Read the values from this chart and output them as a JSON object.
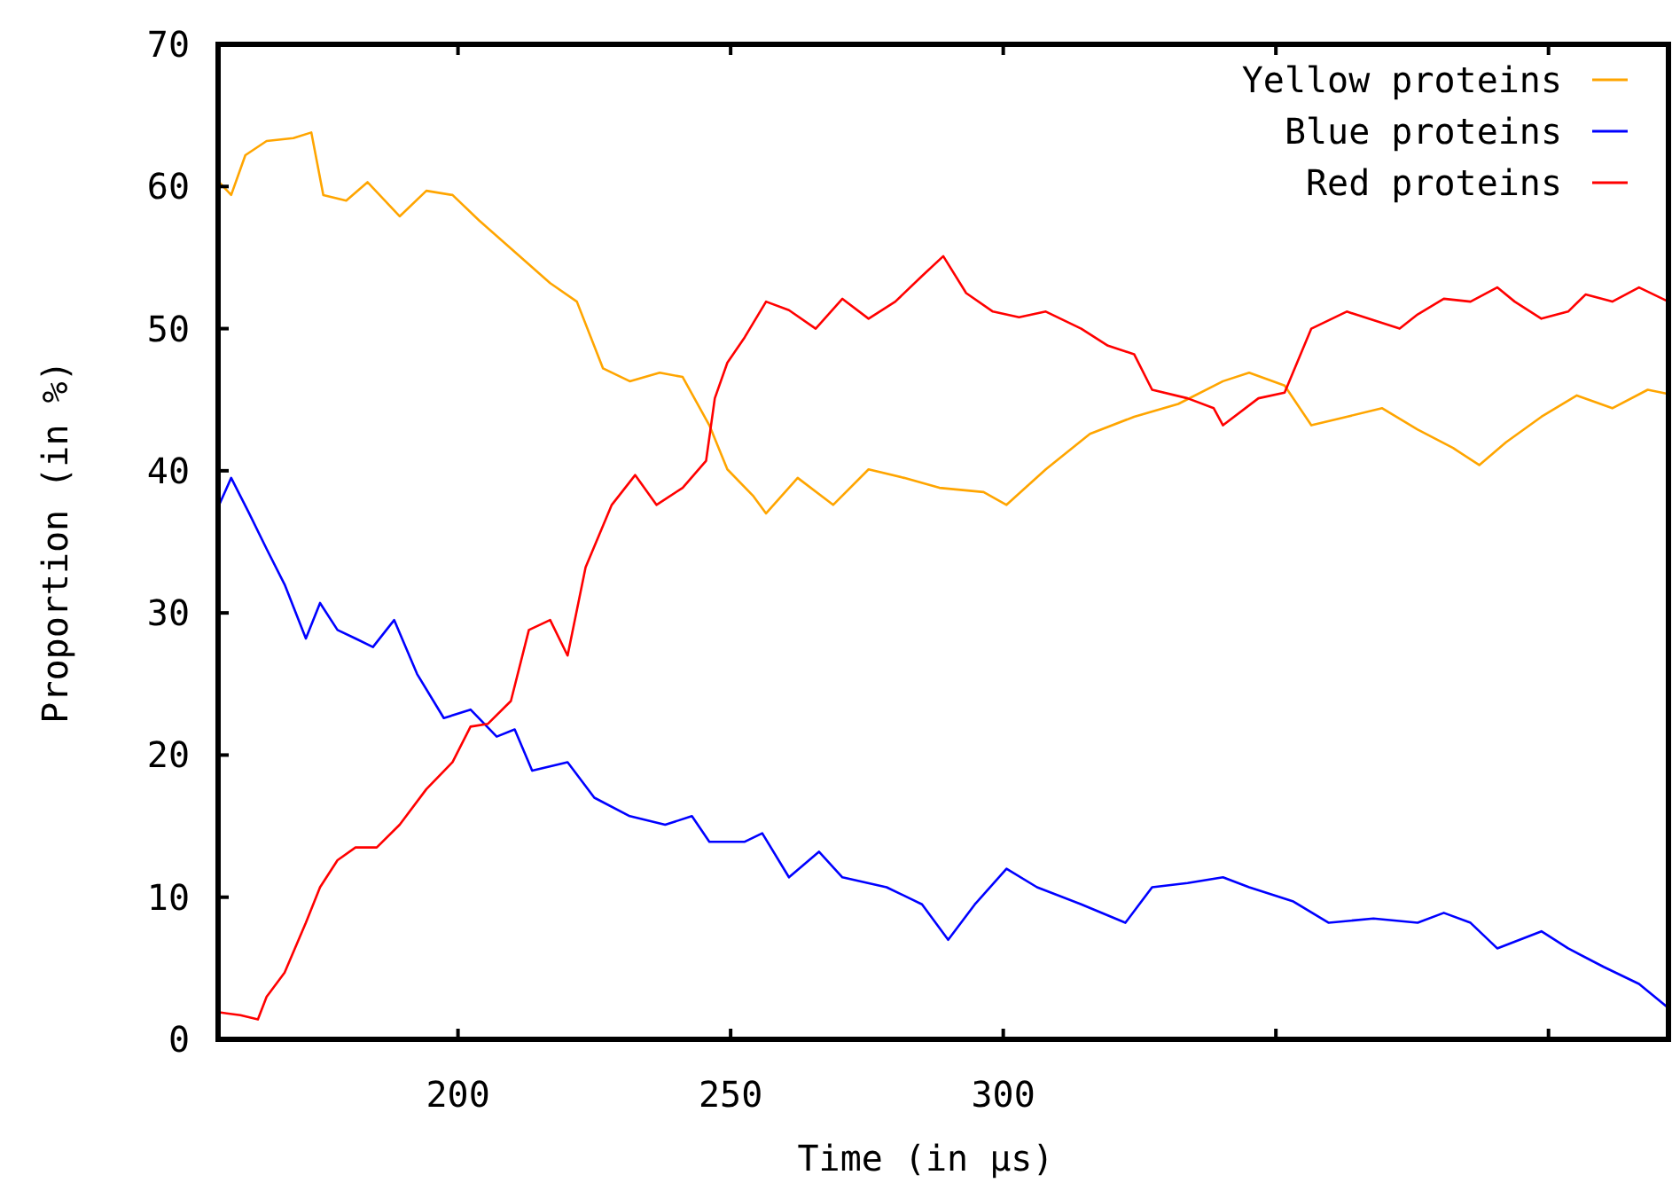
{
  "chart_data": {
    "type": "line",
    "xlabel": "Time (in µs)",
    "ylabel": "Proportion (in %)",
    "xlim": [
      156,
      422
    ],
    "xticks": [
      200,
      250,
      300,
      {
        "value": 350,
        "label": null
      },
      {
        "value": 400,
        "label": null
      }
    ],
    "ylim": [
      0,
      70
    ],
    "yticks": [
      0,
      10,
      20,
      30,
      40,
      50,
      60,
      70
    ],
    "legend": "top right",
    "grid": false,
    "marker": "none",
    "line_style": "solid",
    "series": [
      {
        "name": "Yellow proteins",
        "color": "#ffa500",
        "x": [
          156.2,
          158.4,
          161.0,
          164.9,
          169.8,
          173.1,
          175.3,
          179.5,
          183.4,
          189.3,
          194.2,
          199.0,
          203.9,
          210.4,
          216.9,
          221.8,
          226.6,
          231.5,
          237.0,
          241.2,
          246.1,
          249.4,
          254.2,
          256.5,
          262.3,
          268.8,
          275.3,
          281.8,
          288.3,
          296.4,
          300.6,
          307.8,
          315.9,
          324.0,
          332.1,
          340.3,
          345.1,
          351.6,
          356.5,
          363.0,
          369.5,
          376.0,
          382.5,
          387.3,
          392.2,
          398.7,
          405.2,
          411.7,
          418.2,
          422
        ],
        "values": [
          60.3,
          59.4,
          62.2,
          63.2,
          63.4,
          63.8,
          59.4,
          59.0,
          60.3,
          57.9,
          59.7,
          59.4,
          57.6,
          55.4,
          53.2,
          51.9,
          47.2,
          46.3,
          46.9,
          46.6,
          43.2,
          40.1,
          38.2,
          37.0,
          39.5,
          37.6,
          40.1,
          39.5,
          38.8,
          38.5,
          37.6,
          40.1,
          42.6,
          43.8,
          44.7,
          46.3,
          46.9,
          46.0,
          43.2,
          43.8,
          44.4,
          42.9,
          41.6,
          40.4,
          42.0,
          43.8,
          45.3,
          44.4,
          45.7,
          45.4
        ]
      },
      {
        "name": "Blue proteins",
        "color": "#0000ff",
        "x": [
          156.2,
          158.4,
          161.7,
          164.9,
          168.2,
          172.1,
          174.7,
          177.9,
          181.2,
          184.4,
          188.3,
          192.5,
          197.4,
          202.3,
          207.1,
          210.4,
          213.6,
          220.1,
          225.0,
          231.5,
          238.0,
          242.9,
          246.1,
          252.6,
          255.8,
          260.7,
          266.2,
          270.5,
          278.6,
          285.1,
          289.9,
          294.8,
          300.6,
          306.2,
          314.3,
          322.4,
          327.3,
          333.8,
          340.3,
          345.1,
          353.2,
          359.7,
          367.9,
          376.0,
          380.8,
          385.7,
          390.6,
          398.7,
          403.6,
          410.1,
          416.6,
          422
        ],
        "values": [
          37.6,
          39.5,
          37.0,
          34.5,
          32.0,
          28.2,
          30.7,
          28.8,
          28.2,
          27.6,
          29.5,
          25.7,
          22.6,
          23.2,
          21.3,
          21.8,
          18.9,
          19.5,
          17.0,
          15.7,
          15.1,
          15.7,
          13.9,
          13.9,
          14.5,
          11.4,
          13.2,
          11.4,
          10.7,
          9.5,
          7.0,
          9.5,
          12.0,
          10.7,
          9.5,
          8.2,
          10.7,
          11.0,
          11.4,
          10.7,
          9.7,
          8.2,
          8.5,
          8.2,
          8.9,
          8.2,
          6.4,
          7.6,
          6.4,
          5.1,
          3.9,
          2.2
        ]
      },
      {
        "name": "Red proteins",
        "color": "#ff0000",
        "x": [
          156.2,
          160.1,
          163.3,
          164.9,
          168.2,
          172.1,
          174.7,
          177.9,
          181.2,
          185.1,
          189.3,
          194.2,
          199.0,
          202.3,
          205.5,
          209.7,
          213.0,
          216.9,
          220.1,
          223.4,
          228.2,
          232.5,
          236.4,
          241.2,
          245.5,
          247.1,
          249.4,
          252.6,
          256.5,
          260.7,
          265.6,
          270.5,
          275.3,
          280.2,
          285.1,
          289.0,
          293.2,
          298.1,
          302.9,
          307.8,
          314.3,
          319.2,
          324.0,
          327.3,
          333.8,
          338.6,
          340.3,
          346.8,
          351.6,
          356.5,
          363.0,
          367.9,
          372.7,
          376.0,
          380.8,
          385.7,
          390.6,
          393.8,
          398.7,
          403.6,
          406.8,
          411.7,
          416.6,
          422
        ],
        "values": [
          1.9,
          1.7,
          1.4,
          3.0,
          4.7,
          8.2,
          10.7,
          12.6,
          13.5,
          13.5,
          15.1,
          17.6,
          19.5,
          22.0,
          22.2,
          23.8,
          28.8,
          29.5,
          27.0,
          33.2,
          37.6,
          39.7,
          37.6,
          38.8,
          40.7,
          45.1,
          47.6,
          49.4,
          51.9,
          51.3,
          50.0,
          52.1,
          50.7,
          51.9,
          53.7,
          55.1,
          52.5,
          51.2,
          50.8,
          51.2,
          50.0,
          48.8,
          48.2,
          45.7,
          45.1,
          44.4,
          43.2,
          45.1,
          45.5,
          50.0,
          51.2,
          50.6,
          50.0,
          51.0,
          52.1,
          51.9,
          52.9,
          51.9,
          50.7,
          51.2,
          52.4,
          51.9,
          52.9,
          51.9
        ]
      }
    ]
  }
}
